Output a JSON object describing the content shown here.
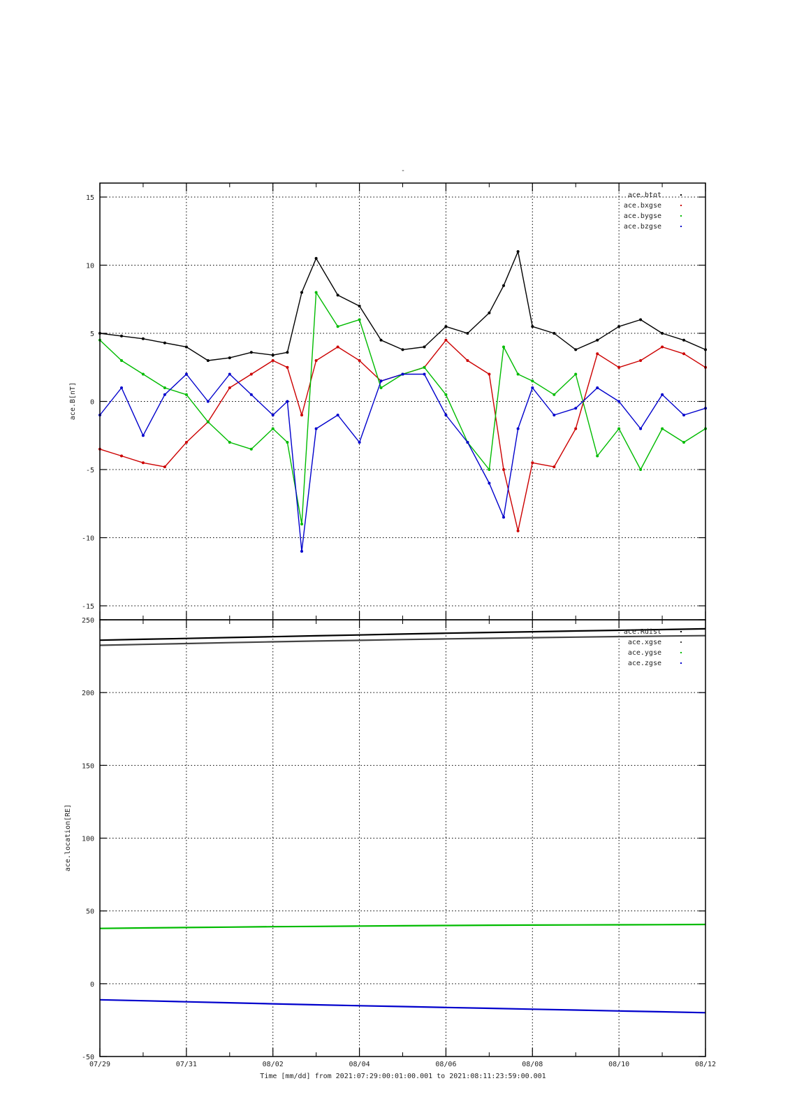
{
  "figure": {
    "title": "-",
    "xlabel": "Time [mm/dd]  from 2021:07:29:00:01:00.001  to  2021:08:11:23:59:00.001"
  },
  "chart_data": [
    {
      "type": "scatter",
      "ylabel": "ace.B[nT]",
      "xlim": [
        "07/29",
        "08/12"
      ],
      "ylim": [
        -15,
        15
      ],
      "x_ticks": [
        "07/29",
        "07/31",
        "08/02",
        "08/04",
        "08/06",
        "08/08",
        "08/10",
        "08/12"
      ],
      "y_ticks": [
        -15,
        -10,
        -5,
        0,
        5,
        10,
        15
      ],
      "grid": true,
      "legend_position": "top-right",
      "x": [
        "07/29 00:00",
        "07/29 12:00",
        "07/30 00:00",
        "07/30 12:00",
        "07/31 00:00",
        "07/31 12:00",
        "08/01 00:00",
        "08/01 12:00",
        "08/02 00:00",
        "08/02 08:00",
        "08/02 16:00",
        "08/03 00:00",
        "08/03 12:00",
        "08/04 00:00",
        "08/04 12:00",
        "08/05 00:00",
        "08/05 12:00",
        "08/06 00:00",
        "08/06 12:00",
        "08/07 00:00",
        "08/07 08:00",
        "08/07 16:00",
        "08/08 00:00",
        "08/08 12:00",
        "08/09 00:00",
        "08/09 12:00",
        "08/10 00:00",
        "08/10 12:00",
        "08/11 00:00",
        "08/11 12:00",
        "08/12 00:00"
      ],
      "series": [
        {
          "name": "ace.btot",
          "color": "#000000",
          "values": [
            5.0,
            4.8,
            4.6,
            4.3,
            4.0,
            3.0,
            3.2,
            3.6,
            3.4,
            3.6,
            8.0,
            10.5,
            7.8,
            7.0,
            4.5,
            3.8,
            4.0,
            5.5,
            5.0,
            6.5,
            8.5,
            11.0,
            5.5,
            5.0,
            3.8,
            4.5,
            5.5,
            6.0,
            5.0,
            4.5,
            3.8
          ]
        },
        {
          "name": "ace.bxgse",
          "color": "#cc0000",
          "values": [
            -3.5,
            -4.0,
            -4.5,
            -4.8,
            -3.0,
            -1.5,
            1.0,
            2.0,
            3.0,
            2.5,
            -1.0,
            3.0,
            4.0,
            3.0,
            1.5,
            2.0,
            2.5,
            4.5,
            3.0,
            2.0,
            -5.0,
            -9.5,
            -4.5,
            -4.8,
            -2.0,
            3.5,
            2.5,
            3.0,
            4.0,
            3.5,
            2.5
          ]
        },
        {
          "name": "ace.bygse",
          "color": "#00bb00",
          "values": [
            4.5,
            3.0,
            2.0,
            1.0,
            0.5,
            -1.5,
            -3.0,
            -3.5,
            -2.0,
            -3.0,
            -9.0,
            8.0,
            5.5,
            6.0,
            1.0,
            2.0,
            2.5,
            0.5,
            -3.0,
            -5.0,
            4.0,
            2.0,
            1.5,
            0.5,
            2.0,
            -4.0,
            -2.0,
            -5.0,
            -2.0,
            -3.0,
            -2.0
          ]
        },
        {
          "name": "ace.bzgse",
          "color": "#0000cc",
          "values": [
            -1.0,
            1.0,
            -2.5,
            0.5,
            2.0,
            0.0,
            2.0,
            0.5,
            -1.0,
            0.0,
            -11.0,
            -2.0,
            -1.0,
            -3.0,
            1.5,
            2.0,
            2.0,
            -1.0,
            -3.0,
            -6.0,
            -8.5,
            -2.0,
            1.0,
            -1.0,
            -0.5,
            1.0,
            0.0,
            -2.0,
            0.5,
            -1.0,
            -0.5
          ]
        }
      ]
    },
    {
      "type": "scatter",
      "ylabel": "ace.location[RE]",
      "xlim": [
        "07/29",
        "08/12"
      ],
      "ylim": [
        -50,
        250
      ],
      "x_ticks": [
        "07/29",
        "07/31",
        "08/02",
        "08/04",
        "08/06",
        "08/08",
        "08/10",
        "08/12"
      ],
      "y_ticks": [
        -50,
        0,
        50,
        100,
        150,
        200,
        250
      ],
      "grid": true,
      "legend_position": "top-right",
      "x": [
        "07/29 00:00",
        "07/30 00:00",
        "07/31 00:00",
        "08/01 00:00",
        "08/02 00:00",
        "08/03 00:00",
        "08/04 00:00",
        "08/05 00:00",
        "08/06 00:00",
        "08/07 00:00",
        "08/08 00:00",
        "08/09 00:00",
        "08/10 00:00",
        "08/11 00:00",
        "08/12 00:00"
      ],
      "series": [
        {
          "name": "ace.Rdist",
          "color": "#000000",
          "values": [
            236,
            236.6,
            237.2,
            237.8,
            238.4,
            239.0,
            239.6,
            240.2,
            240.8,
            241.3,
            241.8,
            242.3,
            242.8,
            243.3,
            243.8
          ]
        },
        {
          "name": "ace.xgse",
          "color": "#444444",
          "values": [
            232.5,
            233.1,
            233.7,
            234.3,
            234.9,
            235.4,
            235.9,
            236.4,
            236.9,
            237.3,
            237.7,
            238.1,
            238.5,
            238.8,
            239.1
          ]
        },
        {
          "name": "ace.ygse",
          "color": "#00bb00",
          "values": [
            38.0,
            38.3,
            38.6,
            38.9,
            39.2,
            39.4,
            39.6,
            39.8,
            40.0,
            40.2,
            40.3,
            40.4,
            40.5,
            40.6,
            40.7
          ]
        },
        {
          "name": "ace.zgse",
          "color": "#0000cc",
          "values": [
            -11.0,
            -11.7,
            -12.4,
            -13.1,
            -13.8,
            -14.5,
            -15.1,
            -15.7,
            -16.3,
            -16.9,
            -17.5,
            -18.1,
            -18.7,
            -19.3,
            -19.9
          ]
        }
      ]
    }
  ]
}
